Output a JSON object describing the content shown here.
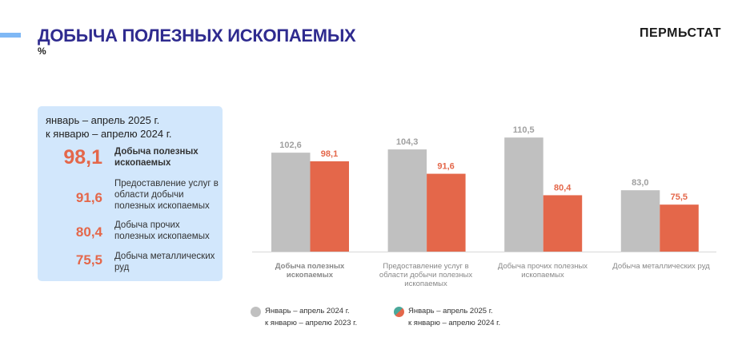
{
  "header": {
    "title": "ДОБЫЧА ПОЛЕЗНЫХ ИСКОПАЕМЫХ",
    "unit": "%",
    "brand": "ПЕРМЬСТАТ"
  },
  "panel": {
    "period_line1": "январь – апрель 2025 г.",
    "period_line2": "к январю – апрелю 2024 г.",
    "items": [
      {
        "value": "98,1",
        "label": "Добыча полезных ископаемых"
      },
      {
        "value": "91,6",
        "label": "Предоставление услуг в области добычи полезных ископаемых"
      },
      {
        "value": "80,4",
        "label": "Добыча прочих полезных ископаемых"
      },
      {
        "value": "75,5",
        "label": "Добыча металлических руд"
      }
    ]
  },
  "colors": {
    "gray": "#c0c0c0",
    "orange": "#e4674a",
    "teal": "#4aa89a",
    "title": "#2f2b8f"
  },
  "chart_data": {
    "type": "bar",
    "categories": [
      "Добыча полезных ископаемых",
      "Предоставление услуг в области добычи полезных ископаемых",
      "Добыча прочих полезных ископаемых",
      "Добыча металлических руд"
    ],
    "series": [
      {
        "name": "Январь – апрель 2024 г. к январю – апрелю 2023 г.",
        "legend_line1": "Январь – апрель 2024 г.",
        "legend_line2": "к январю – апрелю 2023 г.",
        "values": [
          102.6,
          104.3,
          110.5,
          83.0
        ],
        "labels": [
          "102,6",
          "104,3",
          "110,5",
          "83,0"
        ]
      },
      {
        "name": "Январь – апрель 2025 г. к январю – апрелю 2024 г.",
        "legend_line1": "Январь – апрель 2025 г.",
        "legend_line2": "к январю – апрелю 2024 г.",
        "values": [
          98.1,
          91.6,
          80.4,
          75.5
        ],
        "labels": [
          "98,1",
          "91,6",
          "80,4",
          "75,5"
        ]
      }
    ],
    "ylim": [
      51,
      115
    ],
    "grid": false,
    "legend": "bottom"
  }
}
